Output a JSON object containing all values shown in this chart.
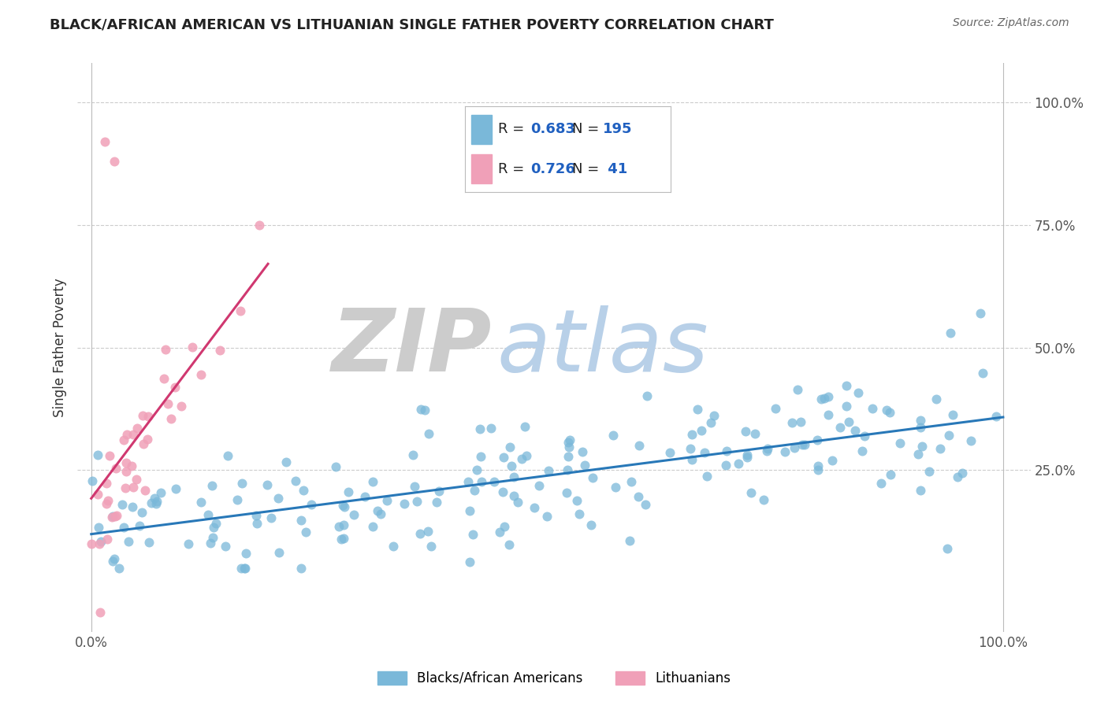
{
  "title": "BLACK/AFRICAN AMERICAN VS LITHUANIAN SINGLE FATHER POVERTY CORRELATION CHART",
  "source": "Source: ZipAtlas.com",
  "ylabel": "Single Father Poverty",
  "blue_color": "#7ab8d9",
  "pink_color": "#f0a0b8",
  "blue_line_color": "#2878b8",
  "pink_line_color": "#d03870",
  "legend_blue_label": "Blacks/African Americans",
  "legend_pink_label": "Lithuanians",
  "R_blue": "0.683",
  "N_blue": "195",
  "R_pink": "0.726",
  "N_pink": " 41",
  "watermark_zip": "ZIP",
  "watermark_atlas": "atlas",
  "watermark_zip_color": "#cccccc",
  "watermark_atlas_color": "#b8d0e8",
  "background_color": "#ffffff",
  "grid_color": "#cccccc",
  "title_color": "#222222",
  "source_color": "#666666",
  "label_color": "#333333",
  "tick_color": "#555555"
}
